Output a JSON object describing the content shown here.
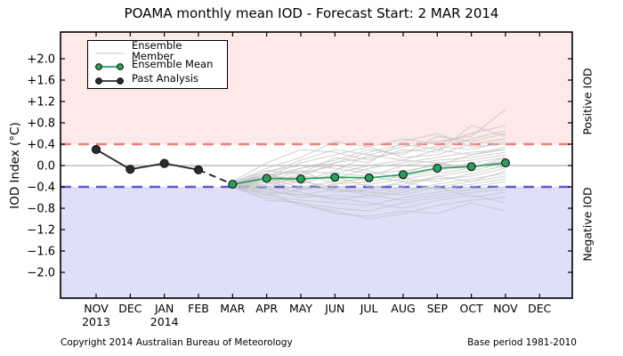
{
  "title": "POAMA monthly mean IOD - Forecast Start: 2 MAR 2014",
  "footer": {
    "copyright": "Copyright 2014 Australian Bureau of Meteorology",
    "base_period": "Base period 1981-2010"
  },
  "axis_labels": {
    "ylabel": "IOD Index (°C)",
    "right_positive": "Positive IOD",
    "right_negative": "Negative IOD"
  },
  "legend": {
    "items": [
      {
        "key": "member",
        "label": "Ensemble Member"
      },
      {
        "key": "mean",
        "label": "Ensemble Mean"
      },
      {
        "key": "past",
        "label": "Past Analysis"
      }
    ]
  },
  "colors": {
    "positive_band": "#fce9e8",
    "negative_band": "#dfdffa",
    "positive_threshold_line": "#f47c7c",
    "negative_threshold_line": "#5a5ad6",
    "zero_line": "#b4b4b4",
    "member_line": "#c2c2c2",
    "mean_line": "#2aa05a",
    "past_line": "#2b2b2b",
    "marker_edge": "#111111",
    "axis": "#000000",
    "connector": "#1a1a1a"
  },
  "chart_data": {
    "type": "line",
    "title": "POAMA monthly mean IOD - Forecast Start: 2 MAR 2014",
    "xlabel": "",
    "ylabel": "IOD Index (°C)",
    "ylim": [
      -2.48,
      2.5
    ],
    "grid": false,
    "legend_position": "upper left",
    "x_tick_labels": [
      "NOV",
      "DEC",
      "JAN",
      "FEB",
      "MAR",
      "APR",
      "MAY",
      "JUN",
      "JUL",
      "AUG",
      "SEP",
      "OCT",
      "NOV",
      "DEC"
    ],
    "x_year_labels": [
      {
        "index": 0,
        "label": "2013"
      },
      {
        "index": 2,
        "label": "2014"
      }
    ],
    "y_tick_values": [
      2.0,
      1.6,
      1.2,
      0.8,
      0.4,
      0.0,
      -0.4,
      -0.8,
      -1.2,
      -1.6,
      -2.0
    ],
    "y_tick_labels": [
      "+2.0",
      "+1.6",
      "+1.2",
      "+0.8",
      "+0.4",
      "0.0",
      "−0.4",
      "−0.8",
      "−1.2",
      "−1.6",
      "−2.0"
    ],
    "positive_threshold": 0.4,
    "negative_threshold": -0.4,
    "past_analysis": {
      "name": "Past Analysis",
      "x_indices": [
        0,
        1,
        2,
        3
      ],
      "values": [
        0.3,
        -0.07,
        0.04,
        -0.08
      ]
    },
    "forecast_connector": {
      "style": "dashed",
      "from_index": 3,
      "from_value": -0.08,
      "to_index": 4,
      "to_value": -0.35
    },
    "ensemble_mean": {
      "name": "Ensemble Mean",
      "x_indices": [
        4,
        5,
        6,
        7,
        8,
        9,
        10,
        11,
        12
      ],
      "values": [
        -0.35,
        -0.24,
        -0.25,
        -0.22,
        -0.23,
        -0.17,
        -0.05,
        -0.02,
        0.05
      ]
    },
    "ensemble_members": {
      "name": "Ensemble Member",
      "x_indices": [
        4,
        5,
        6,
        7,
        8,
        9,
        10,
        11,
        12
      ],
      "series": [
        [
          -0.35,
          -0.15,
          0.1,
          0.3,
          0.2,
          0.35,
          0.45,
          0.55,
          1.05
        ],
        [
          -0.32,
          -0.05,
          0.15,
          0.45,
          0.35,
          0.5,
          0.4,
          0.6,
          0.75
        ],
        [
          -0.38,
          -0.25,
          -0.05,
          0.1,
          0.3,
          0.2,
          0.55,
          0.45,
          0.6
        ],
        [
          -0.3,
          0.05,
          0.3,
          0.25,
          0.1,
          0.3,
          0.25,
          0.75,
          0.55
        ],
        [
          -0.4,
          -0.3,
          -0.2,
          0.05,
          0.15,
          0.25,
          0.35,
          0.3,
          0.45
        ],
        [
          -0.33,
          -0.2,
          0.05,
          0.2,
          0.35,
          0.15,
          0.2,
          0.4,
          0.5
        ],
        [
          -0.36,
          -0.1,
          -0.15,
          0.15,
          0.05,
          0.45,
          0.6,
          0.35,
          0.4
        ],
        [
          -0.31,
          -0.25,
          -0.3,
          -0.1,
          0.2,
          0.1,
          0.3,
          0.2,
          0.35
        ],
        [
          -0.37,
          -0.4,
          -0.2,
          -0.25,
          -0.05,
          0.05,
          0.15,
          0.25,
          0.3
        ],
        [
          -0.34,
          -0.15,
          -0.35,
          -0.15,
          -0.2,
          0.0,
          0.1,
          0.15,
          0.25
        ],
        [
          -0.39,
          -0.45,
          -0.4,
          -0.3,
          -0.25,
          -0.15,
          0.05,
          0.1,
          0.2
        ],
        [
          -0.29,
          -0.2,
          -0.1,
          -0.35,
          -0.3,
          -0.2,
          -0.1,
          0.05,
          0.15
        ],
        [
          -0.35,
          -0.3,
          -0.45,
          -0.4,
          -0.35,
          -0.25,
          -0.15,
          -0.05,
          0.1
        ],
        [
          -0.41,
          -0.5,
          -0.55,
          -0.45,
          -0.5,
          -0.4,
          -0.2,
          -0.1,
          0.05
        ],
        [
          -0.33,
          -0.35,
          -0.25,
          -0.5,
          -0.45,
          -0.3,
          -0.25,
          -0.2,
          -0.05
        ],
        [
          -0.37,
          -0.45,
          -0.6,
          -0.55,
          -0.6,
          -0.5,
          -0.35,
          -0.25,
          -0.15
        ],
        [
          -0.3,
          -0.4,
          -0.5,
          -0.65,
          -0.55,
          -0.45,
          -0.4,
          -0.3,
          -0.2
        ],
        [
          -0.36,
          -0.55,
          -0.65,
          -0.7,
          -0.75,
          -0.6,
          -0.5,
          -0.4,
          -0.3
        ],
        [
          -0.42,
          -0.6,
          -0.7,
          -0.8,
          -0.85,
          -0.7,
          -0.6,
          -0.5,
          -0.45
        ],
        [
          -0.34,
          -0.5,
          -0.75,
          -0.85,
          -1.0,
          -0.9,
          -0.75,
          -0.65,
          -0.6
        ],
        [
          -0.38,
          -0.65,
          -0.7,
          -0.9,
          -0.95,
          -0.85,
          -0.9,
          -0.7,
          -0.85
        ],
        [
          -0.32,
          -0.45,
          -0.55,
          -0.6,
          -0.7,
          -0.8,
          -0.65,
          -0.55,
          -0.7
        ],
        [
          -0.35,
          -0.25,
          -0.4,
          -0.45,
          -0.55,
          -0.65,
          -0.55,
          -0.45,
          -0.4
        ],
        [
          -0.31,
          -0.1,
          0.0,
          -0.05,
          -0.15,
          -0.1,
          0.0,
          0.2,
          0.3
        ],
        [
          -0.39,
          -0.35,
          -0.15,
          0.0,
          -0.1,
          -0.25,
          -0.3,
          -0.15,
          0.0
        ],
        [
          -0.36,
          -0.2,
          -0.25,
          -0.2,
          -0.4,
          -0.35,
          -0.2,
          -0.3,
          -0.1
        ],
        [
          -0.33,
          -0.3,
          -0.1,
          -0.15,
          0.0,
          0.1,
          0.05,
          -0.05,
          0.15
        ],
        [
          -0.4,
          -0.55,
          -0.45,
          -0.35,
          -0.2,
          -0.3,
          -0.45,
          -0.35,
          -0.25
        ],
        [
          -0.34,
          -0.4,
          -0.3,
          -0.4,
          -0.5,
          -0.55,
          -0.4,
          -0.6,
          -0.5
        ],
        [
          -0.37,
          -0.2,
          -0.05,
          0.05,
          0.25,
          0.4,
          0.3,
          0.5,
          0.65
        ]
      ]
    }
  }
}
